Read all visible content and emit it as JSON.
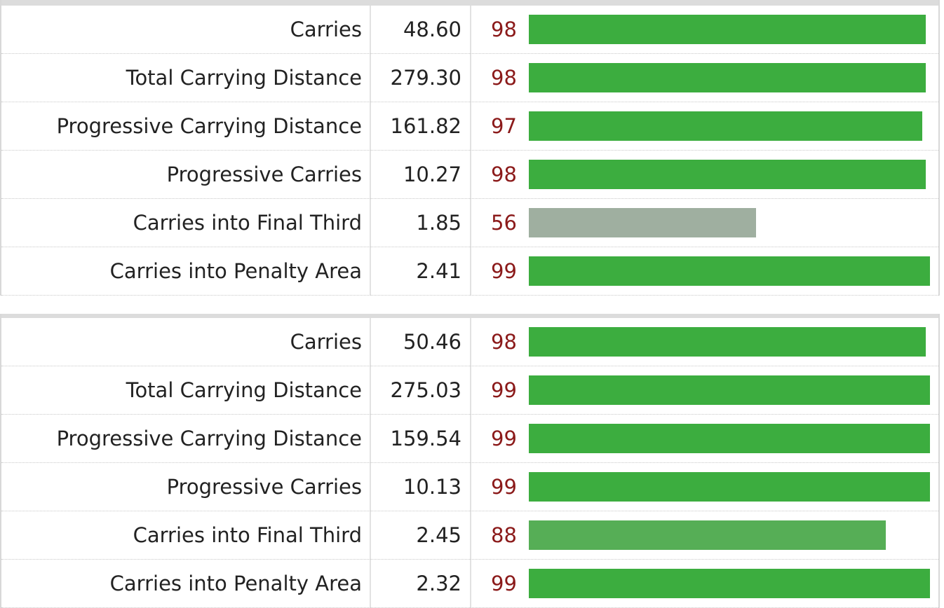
{
  "tables": [
    {
      "rows": [
        {
          "label": "Carries",
          "value": "48.60",
          "percentile": 98,
          "color": "#3cad3f"
        },
        {
          "label": "Total Carrying Distance",
          "value": "279.30",
          "percentile": 98,
          "color": "#3cad3f"
        },
        {
          "label": "Progressive Carrying Distance",
          "value": "161.82",
          "percentile": 97,
          "color": "#3cad3f"
        },
        {
          "label": "Progressive Carries",
          "value": "10.27",
          "percentile": 98,
          "color": "#3cad3f"
        },
        {
          "label": "Carries into Final Third",
          "value": "1.85",
          "percentile": 56,
          "color": "#9fafa0"
        },
        {
          "label": "Carries into Penalty Area",
          "value": "2.41",
          "percentile": 99,
          "color": "#3cad3f"
        }
      ]
    },
    {
      "rows": [
        {
          "label": "Carries",
          "value": "50.46",
          "percentile": 98,
          "color": "#3cad3f"
        },
        {
          "label": "Total Carrying Distance",
          "value": "275.03",
          "percentile": 99,
          "color": "#3cad3f"
        },
        {
          "label": "Progressive Carrying Distance",
          "value": "159.54",
          "percentile": 99,
          "color": "#3cad3f"
        },
        {
          "label": "Progressive Carries",
          "value": "10.13",
          "percentile": 99,
          "color": "#3cad3f"
        },
        {
          "label": "Carries into Final Third",
          "value": "2.45",
          "percentile": 88,
          "color": "#56ae56"
        },
        {
          "label": "Carries into Penalty Area",
          "value": "2.32",
          "percentile": 99,
          "color": "#3cad3f"
        }
      ]
    }
  ]
}
